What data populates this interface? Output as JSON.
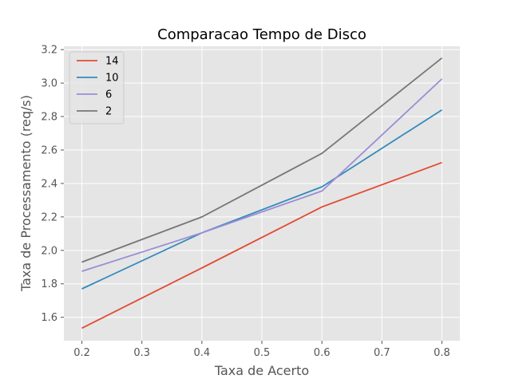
{
  "chart_data": {
    "type": "line",
    "title": "Comparacao Tempo de Disco",
    "xlabel": "Taxa de Acerto",
    "ylabel": "Taxa de Processamento (req/s)",
    "x": [
      0.2,
      0.4,
      0.6,
      0.8
    ],
    "xlim": [
      0.17,
      0.83
    ],
    "ylim": [
      1.46,
      3.22
    ],
    "xticks": [
      "0.2",
      "0.3",
      "0.4",
      "0.5",
      "0.6",
      "0.7",
      "0.8"
    ],
    "yticks": [
      "1.6",
      "1.8",
      "2.0",
      "2.2",
      "2.4",
      "2.6",
      "2.8",
      "3.0",
      "3.2"
    ],
    "grid": true,
    "legend_position": "top-left",
    "series": [
      {
        "name": "14",
        "color": "#E24A33",
        "values": [
          1.535,
          1.895,
          2.26,
          2.525
        ]
      },
      {
        "name": "10",
        "color": "#348ABD",
        "values": [
          1.77,
          2.105,
          2.38,
          2.84
        ]
      },
      {
        "name": "6",
        "color": "#988ED5",
        "values": [
          1.875,
          2.105,
          2.355,
          3.025
        ]
      },
      {
        "name": "2",
        "color": "#777777",
        "values": [
          1.93,
          2.2,
          2.58,
          3.15
        ]
      }
    ]
  }
}
